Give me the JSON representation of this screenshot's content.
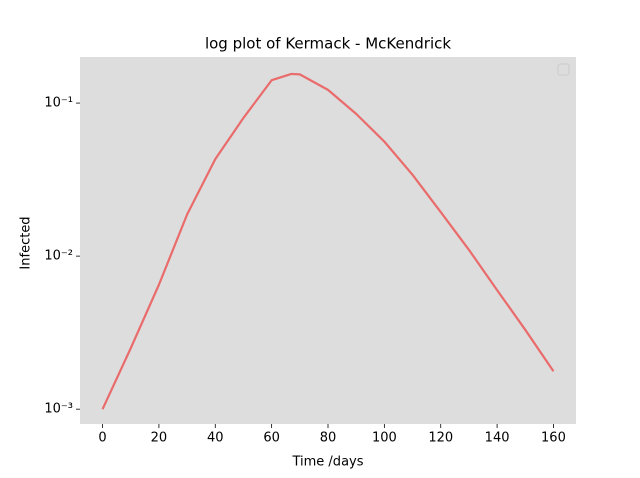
{
  "chart_data": {
    "type": "line",
    "title": "log plot of Kermack - McKendrick",
    "x_label": "Time /days",
    "y_label": "Infected",
    "x": [
      0,
      10,
      20,
      30,
      40,
      50,
      60,
      67,
      70,
      80,
      90,
      100,
      110,
      120,
      130,
      140,
      150,
      160
    ],
    "series": [
      {
        "color": "#ea6b6b",
        "values": [
          0.001,
          0.0025,
          0.0065,
          0.0187,
          0.043,
          0.08,
          0.141,
          0.155,
          0.154,
          0.122,
          0.085,
          0.056,
          0.034,
          0.0194,
          0.011,
          0.006,
          0.0033,
          0.00177
        ]
      }
    ],
    "xlim": [
      -8,
      168
    ],
    "xticks": [
      0,
      20,
      40,
      60,
      80,
      100,
      120,
      140,
      160
    ],
    "ylim": [
      0.0008,
      0.2
    ],
    "log_y": true,
    "yticks": [
      {
        "value": 0.001,
        "label": "10⁻³"
      },
      {
        "value": 0.01,
        "label": "10⁻²"
      },
      {
        "value": 0.1,
        "label": "10⁻¹"
      }
    ],
    "background": "#dddddd",
    "grid": false
  }
}
